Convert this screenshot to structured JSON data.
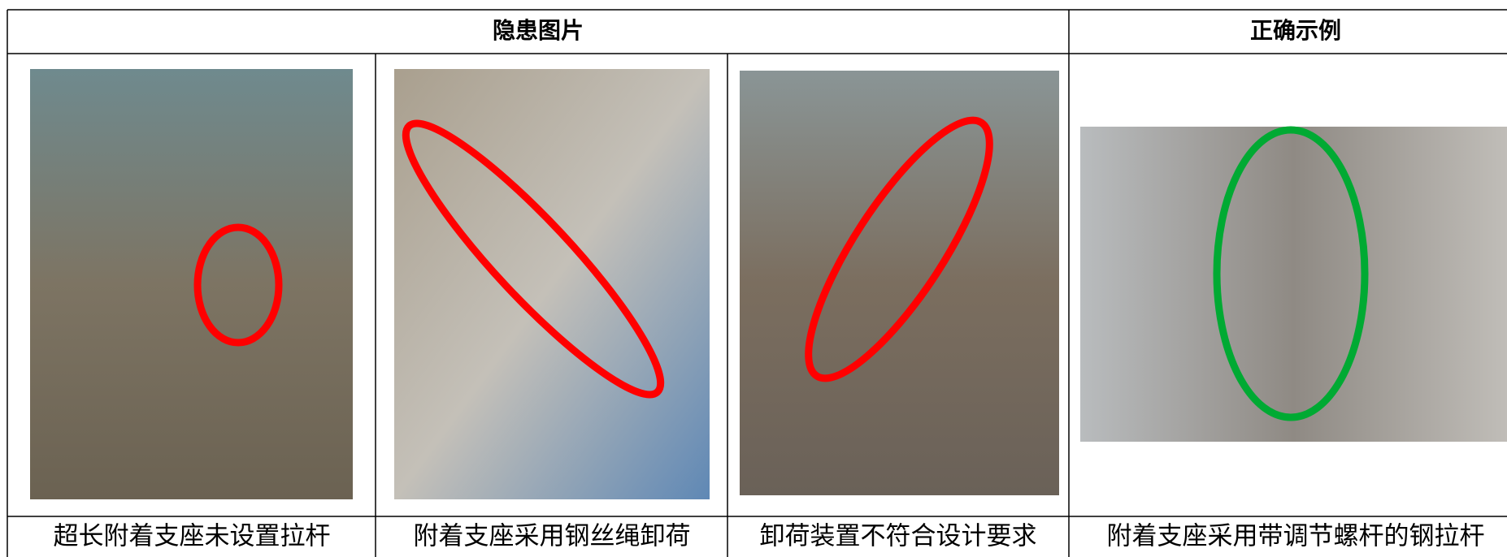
{
  "table": {
    "header": [
      "隐患图片",
      "正确示例"
    ],
    "captions": [
      "超长附着支座未设置拉杆",
      "附着支座采用钢丝绳卸荷",
      "卸荷装置不符合设计要求",
      "附着支座采用带调节螺杆的钢拉杆"
    ]
  }
}
